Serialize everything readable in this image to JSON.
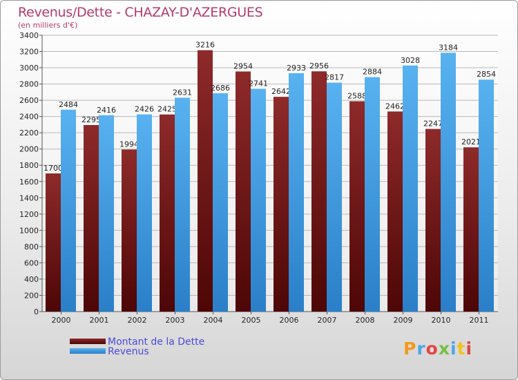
{
  "chart_data": {
    "type": "bar",
    "title": "Revenus/Dette - CHAZAY-D'AZERGUES",
    "subtitle": "(en milliers d'€)",
    "categories": [
      "2000",
      "2001",
      "2002",
      "2003",
      "2004",
      "2005",
      "2006",
      "2007",
      "2008",
      "2009",
      "2010",
      "2011"
    ],
    "series": [
      {
        "name": "Montant de la Dette",
        "values": [
          1700,
          2295,
          1994,
          2425,
          3216,
          2954,
          2642,
          2956,
          2588,
          2462,
          2247,
          2021
        ],
        "labels": [
          "1700",
          "2295",
          "1994",
          "2425",
          "3216",
          "2954",
          "2642",
          "2956",
          "2588",
          "2462",
          "2247",
          "2021"
        ],
        "color": "#7a1c1c"
      },
      {
        "name": "Revenus",
        "values": [
          2484,
          2416,
          2426,
          2631,
          2686,
          2741,
          2933,
          2817,
          2884,
          3028,
          3184,
          2854
        ],
        "labels": [
          "2484",
          "2416",
          "2426",
          "2631",
          "2686",
          "2741",
          "2933",
          "2817",
          "2884",
          "3028",
          "3184",
          "2854"
        ],
        "color": "#3d9be0"
      }
    ],
    "ylim": [
      0,
      3400
    ],
    "yticks": [
      0,
      200,
      400,
      600,
      800,
      1000,
      1200,
      1400,
      1600,
      1800,
      2000,
      2200,
      2400,
      2600,
      2800,
      3000,
      3200,
      3400
    ],
    "grid": true,
    "legend": "bottom-left"
  },
  "logo": {
    "text": "Proxiti"
  }
}
